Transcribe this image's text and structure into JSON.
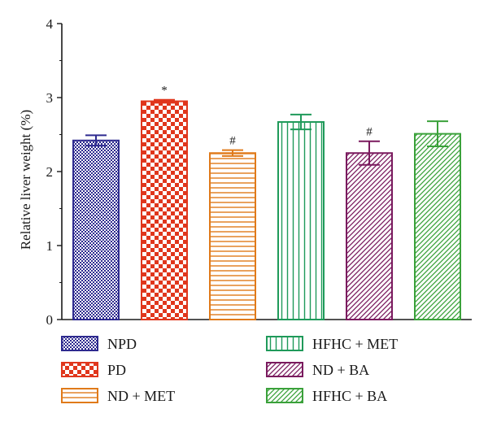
{
  "chart_data": {
    "type": "bar",
    "categories": [
      "NPD",
      "PD",
      "ND + MET",
      "HFHC + MET",
      "ND + BA",
      "HFHC + BA"
    ],
    "values": [
      2.42,
      2.95,
      2.25,
      2.67,
      2.25,
      2.51
    ],
    "errors": [
      0.07,
      0.02,
      0.04,
      0.1,
      0.16,
      0.17
    ],
    "annotations": [
      "",
      "*",
      "#",
      "",
      "#",
      ""
    ],
    "colors": [
      "#2e2a8f",
      "#e0361c",
      "#e07a1a",
      "#1f9a5a",
      "#7a1a5e",
      "#3aa13a"
    ],
    "patterns": [
      "checker-fine",
      "checker-coarse",
      "horizontal-lines",
      "vertical-lines",
      "diagonal-lines",
      "diagonal-lines"
    ],
    "ylabel": "Relative liver weight (%)",
    "xlabel": "",
    "ylim": [
      0,
      4
    ],
    "yticks": [
      0,
      1,
      2,
      3,
      4
    ],
    "grid": false,
    "legend": {
      "placement": "bottom",
      "columns": 2,
      "entries": [
        "NPD",
        "PD",
        "ND + MET",
        "HFHC + MET",
        "ND + BA",
        "HFHC + BA"
      ]
    }
  }
}
